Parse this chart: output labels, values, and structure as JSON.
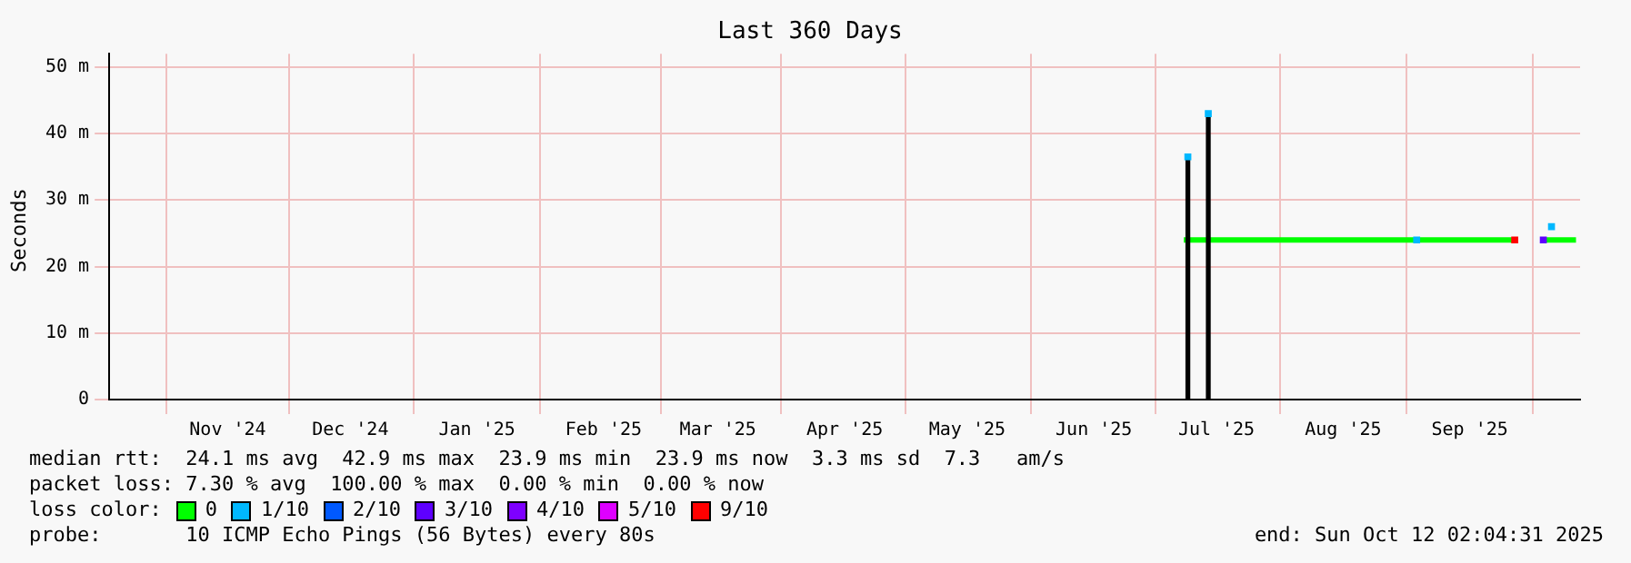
{
  "chart_data": {
    "type": "line",
    "title": "Last 360 Days",
    "ylabel": "Seconds",
    "legend_title": "loss color:",
    "legend": "bottom",
    "grid": true,
    "xlim": [
      "2024-10-17",
      "2025-10-12"
    ],
    "xticks": [
      {
        "value": "2024-11-15",
        "label": "Nov '24"
      },
      {
        "value": "2024-12-15",
        "label": "Dec '24"
      },
      {
        "value": "2025-01-15",
        "label": "Jan '25"
      },
      {
        "value": "2025-02-15",
        "label": "Feb '25"
      },
      {
        "value": "2025-03-15",
        "label": "Mar '25"
      },
      {
        "value": "2025-04-15",
        "label": "Apr '25"
      },
      {
        "value": "2025-05-15",
        "label": "May '25"
      },
      {
        "value": "2025-06-15",
        "label": "Jun '25"
      },
      {
        "value": "2025-07-15",
        "label": "Jul '25"
      },
      {
        "value": "2025-08-15",
        "label": "Aug '25"
      },
      {
        "value": "2025-09-15",
        "label": "Sep '25"
      }
    ],
    "ylim": [
      0,
      52
    ],
    "yticks": [
      0,
      {
        "value": 10,
        "label": "10 m"
      },
      {
        "value": 20,
        "label": "20 m"
      },
      {
        "value": 30,
        "label": "30 m"
      },
      {
        "value": 40,
        "label": "40 m"
      },
      {
        "value": 50,
        "label": "50 m"
      }
    ],
    "series": [
      {
        "type": "bar",
        "color": "#000000",
        "x": [
          "2025-07-08",
          "2025-07-13"
        ],
        "values": [
          36.5,
          43
        ]
      },
      {
        "name": "0",
        "color": "#00ff00",
        "x": [
          "2025-07-07",
          "2025-07-13",
          "2025-08-01",
          "2025-09-01",
          "2025-09-26"
        ],
        "values": [
          24,
          24,
          24,
          24,
          24
        ]
      },
      {
        "color": "#00ff00",
        "x": [
          "2025-10-03",
          "2025-10-07",
          "2025-10-11"
        ],
        "values": [
          24,
          24,
          24
        ]
      },
      {
        "name": "1/10",
        "type": "scatter",
        "marker": "square",
        "color": "#00b8ff",
        "x": [
          "2025-07-08",
          "2025-07-13",
          "2025-09-02",
          "2025-10-05"
        ],
        "values": [
          36.5,
          43,
          24,
          26
        ]
      },
      {
        "name": "2/10",
        "type": "scatter",
        "marker": "square",
        "color": "#0059ff"
      },
      {
        "name": "3/10",
        "type": "scatter",
        "marker": "square",
        "color": "#5e00ff",
        "x": [
          "2025-10-03"
        ],
        "values": [
          24
        ]
      },
      {
        "name": "4/10",
        "type": "scatter",
        "marker": "square",
        "color": "#7e00ff"
      },
      {
        "name": "5/10",
        "type": "scatter",
        "marker": "square",
        "color": "#dd00ff"
      },
      {
        "name": "9/10",
        "type": "scatter",
        "marker": "square",
        "color": "#ff0000",
        "x": [
          "2025-09-26"
        ],
        "values": [
          24
        ]
      }
    ],
    "annotations": [
      "median rtt:  24.1 ms avg  42.9 ms max  23.9 ms min  23.9 ms now  3.3 ms sd  7.3   am/s",
      "packet loss: 7.30 % avg  100.00 % max  0.00 % min  0.00 % now",
      "probe:       10 ICMP Echo Pings (56 Bytes) every 80s",
      "end: Sun Oct 12 02:04:31 2025"
    ]
  }
}
